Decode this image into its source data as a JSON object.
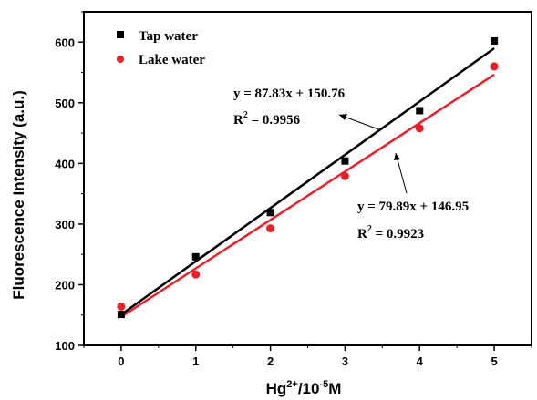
{
  "chart_data": {
    "type": "scatter",
    "title": "",
    "xlabel_base": "Hg",
    "xlabel_sup": "2+",
    "xlabel_mid": "/10",
    "xlabel_sup2": "-5",
    "xlabel_end": "M",
    "ylabel": "Fluorescence Intensity (a.u.)",
    "xlim": [
      -0.5,
      5.5
    ],
    "ylim": [
      100,
      650
    ],
    "xticks": [
      0,
      1,
      2,
      3,
      4,
      5
    ],
    "yticks": [
      100,
      200,
      300,
      400,
      500,
      600
    ],
    "grid": false,
    "legend_position": "top-left",
    "series": [
      {
        "name": "Tap water",
        "color": "#000000",
        "marker": "square",
        "x": [
          0,
          1,
          2,
          3,
          4,
          5
        ],
        "y": [
          151,
          246,
          319,
          404,
          487,
          602
        ],
        "fit": {
          "slope": 87.83,
          "intercept": 150.76
        }
      },
      {
        "name": "Lake water",
        "color": "#e8202a",
        "marker": "circle",
        "x": [
          0,
          1,
          2,
          3,
          4,
          5
        ],
        "y": [
          164,
          217,
          293,
          379,
          458,
          560
        ],
        "fit": {
          "slope": 79.89,
          "intercept": 146.95
        }
      }
    ],
    "annotations": [
      {
        "equation": "y = 87.83x + 150.76",
        "r2_value": " = 0.9956"
      },
      {
        "equation": "y = 79.89x + 146.95",
        "r2_value": " = 0.9923"
      }
    ],
    "r2_base": "R",
    "r2_sup": "2"
  }
}
